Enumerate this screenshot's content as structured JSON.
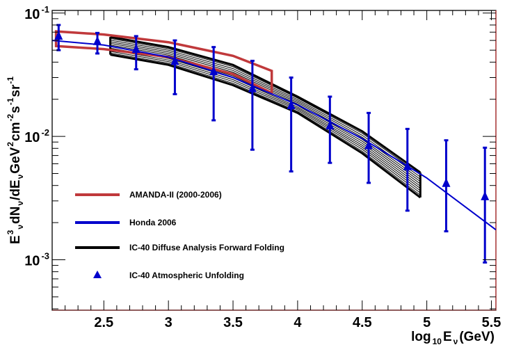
{
  "chart_data": {
    "type": "line",
    "title": "",
    "xlabel": {
      "main": "log",
      "sub": "10",
      "var": "E",
      "var_sub": "ν",
      "unit": "(GeV)"
    },
    "ylabel": "E³ν dNν/dEν GeV² cm⁻² s⁻¹ sr⁻¹",
    "ylabel_parts": {
      "e": "E",
      "e_sup": "3",
      "nu": "ν",
      "mid": " dN",
      "mid2": "/dE",
      "rest1": " GeV",
      "rest1_sup": "2",
      "rest2": " cm",
      "rest2_sup": "-2",
      "rest3": " s",
      "rest3_sup": "-1",
      "rest4": " sr",
      "rest4_sup": "-1"
    },
    "xlim": [
      2.1,
      5.535
    ],
    "ylim": [
      0.00039,
      0.105
    ],
    "yscale": "log",
    "x_ticks": [
      {
        "value": 2.5,
        "label": "2.5"
      },
      {
        "value": 3,
        "label": "3"
      },
      {
        "value": 3.5,
        "label": "3.5"
      },
      {
        "value": 4,
        "label": "4"
      },
      {
        "value": 4.5,
        "label": "4.5"
      },
      {
        "value": 5,
        "label": "5"
      },
      {
        "value": 5.5,
        "label": "5.5"
      }
    ],
    "y_ticks": [
      {
        "value": 0.1,
        "base": "10",
        "exp": "-1"
      },
      {
        "value": 0.01,
        "base": "10",
        "exp": "-2"
      },
      {
        "value": 0.001,
        "base": "10",
        "exp": "-3"
      }
    ],
    "legend_position": "bottom-left",
    "series": [
      {
        "name": "AMANDA-II (2000-2006)",
        "kind": "band-outline",
        "color": "#c0393b",
        "upper": {
          "x": [
            2.13,
            2.5,
            3.0,
            3.5,
            3.8
          ],
          "y": [
            0.071,
            0.067,
            0.058,
            0.045,
            0.034
          ]
        },
        "lower": {
          "x": [
            2.13,
            2.5,
            3.0,
            3.5,
            3.8
          ],
          "y": [
            0.054,
            0.051,
            0.044,
            0.032,
            0.0225
          ]
        }
      },
      {
        "name": "Honda 2006",
        "kind": "line",
        "color": "#0000cc",
        "x": [
          2.1,
          2.5,
          3.0,
          3.5,
          4.0,
          4.5,
          5.0,
          5.535
        ],
        "y": [
          0.06,
          0.055,
          0.044,
          0.03,
          0.018,
          0.0096,
          0.0046,
          0.00175
        ]
      },
      {
        "name": "IC-40 Diffuse Analysis Forward Folding",
        "kind": "band",
        "color": "#000000",
        "n_lines": 12,
        "x": [
          2.55,
          3.0,
          3.5,
          4.0,
          4.5,
          4.95
        ],
        "upper": [
          0.064,
          0.053,
          0.038,
          0.021,
          0.011,
          0.0051
        ],
        "lower": [
          0.046,
          0.038,
          0.026,
          0.0155,
          0.0073,
          0.0032
        ]
      },
      {
        "name": "IC-40 Atmospheric Unfolding",
        "kind": "points",
        "color": "#0000cc",
        "marker": "triangle",
        "x": [
          2.15,
          2.45,
          2.75,
          3.05,
          3.35,
          3.65,
          3.95,
          4.25,
          4.55,
          4.85,
          5.15,
          5.45
        ],
        "y": [
          0.064,
          0.058,
          0.05,
          0.04,
          0.033,
          0.024,
          0.0175,
          0.012,
          0.0083,
          0.0056,
          0.0041,
          0.0032
        ],
        "y_low": [
          0.05,
          0.047,
          0.035,
          0.022,
          0.0135,
          0.0078,
          0.0052,
          0.0061,
          0.0042,
          0.0025,
          0.0017,
          0.00095
        ],
        "y_high": [
          0.08,
          0.069,
          0.065,
          0.06,
          0.053,
          0.041,
          0.03,
          0.021,
          0.0155,
          0.0115,
          0.0093,
          0.0081
        ]
      }
    ]
  },
  "legend": [
    {
      "label": "AMANDA-II (2000-2006)",
      "symbol": "line",
      "color": "#c0393b"
    },
    {
      "label": "Honda 2006",
      "symbol": "line",
      "color": "#0000cc"
    },
    {
      "label": "IC-40 Diffuse Analysis Forward Folding",
      "symbol": "line",
      "color": "#000000"
    },
    {
      "label": "IC-40 Atmospheric Unfolding",
      "symbol": "triangle",
      "color": "#0000cc"
    }
  ]
}
